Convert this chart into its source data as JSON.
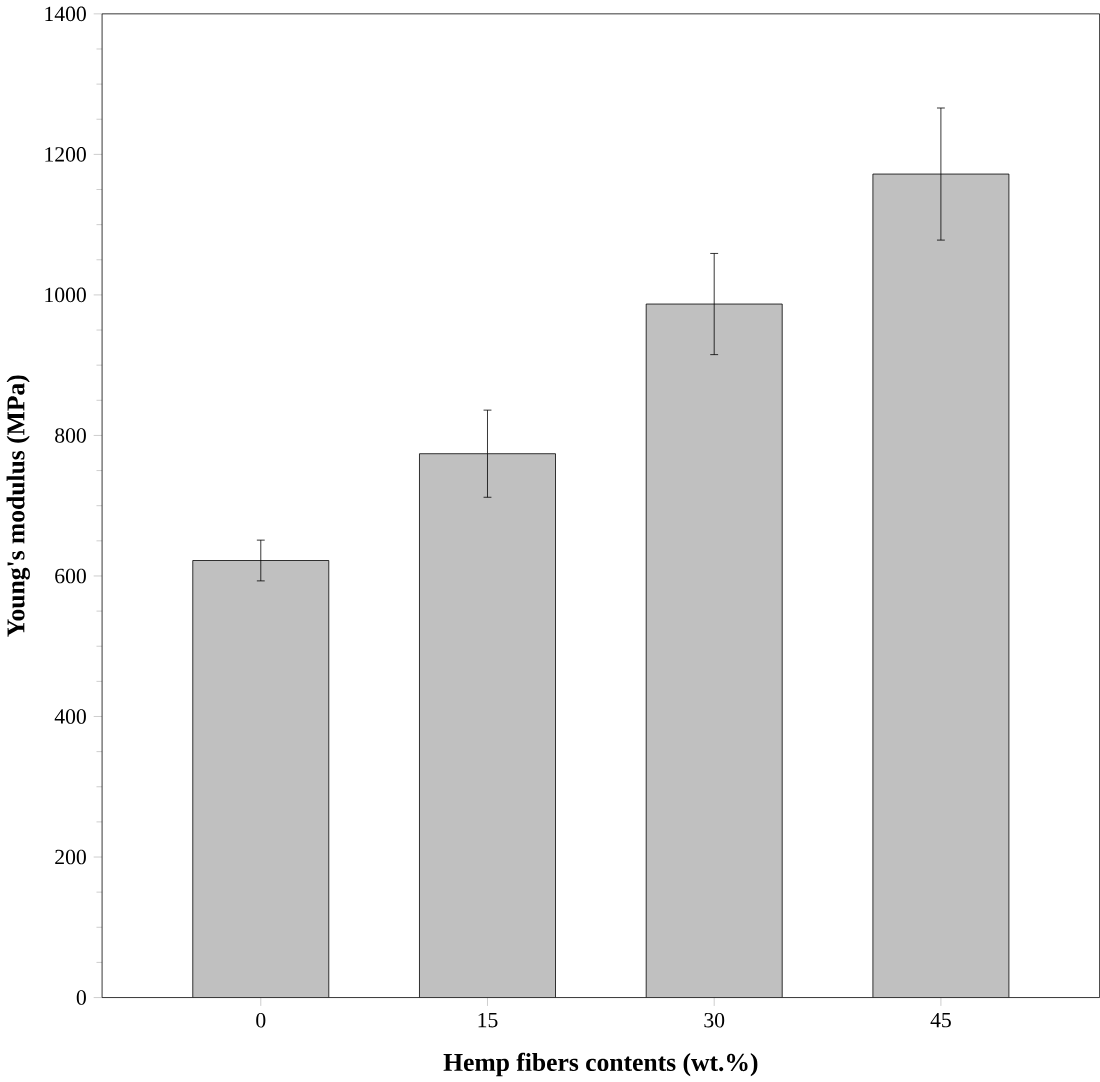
{
  "chart_data": {
    "type": "bar",
    "xlabel": "Hemp fibers contents (wt.%)",
    "ylabel": "Young's modulus (MPa)",
    "categories": [
      "0",
      "15",
      "30",
      "45"
    ],
    "values": [
      622,
      774,
      987,
      1172
    ],
    "errors": [
      29,
      62,
      72,
      94
    ],
    "color": "#c0c0c0",
    "ylim": [
      0,
      1400
    ],
    "yticks": [
      0,
      200,
      400,
      600,
      800,
      1000,
      1200,
      1400
    ],
    "grid": false
  }
}
